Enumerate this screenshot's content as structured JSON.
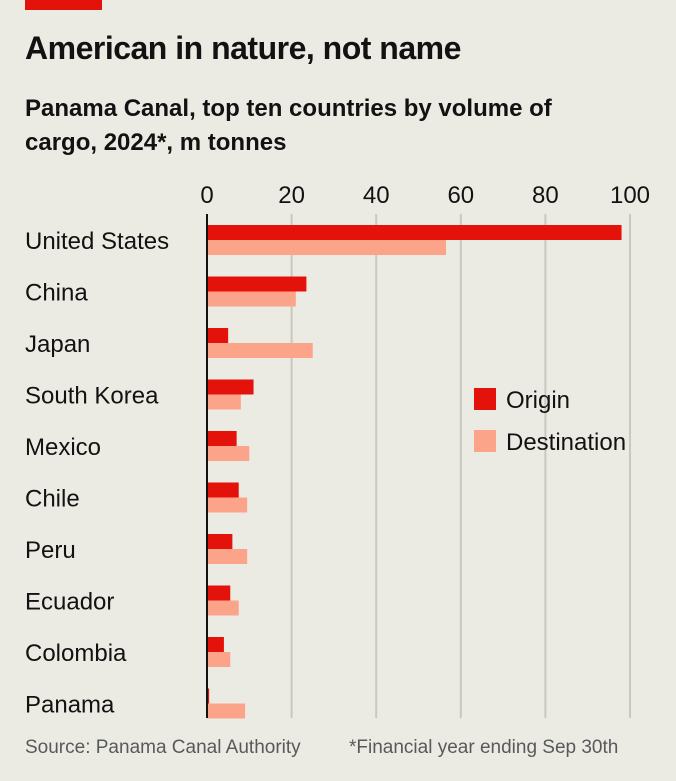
{
  "header": {
    "title": "American in nature, not name",
    "subtitle": "Panama Canal, top ten countries by volume of cargo, 2024*, m tonnes"
  },
  "footer": {
    "source": "Source: Panama Canal Authority",
    "note": "*Financial year ending Sep 30th"
  },
  "colors": {
    "origin": "#e3120b",
    "destination": "#fca48a",
    "background": "#ecebe3",
    "grid": "#c9c8c0",
    "accent": "#e3120b"
  },
  "chart_data": {
    "type": "bar",
    "orientation": "horizontal",
    "categories": [
      "United States",
      "China",
      "Japan",
      "South Korea",
      "Mexico",
      "Chile",
      "Peru",
      "Ecuador",
      "Colombia",
      "Panama"
    ],
    "series": [
      {
        "name": "Origin",
        "values": [
          98,
          23.5,
          5,
          11,
          7,
          7.5,
          6,
          5.5,
          4,
          0.5
        ]
      },
      {
        "name": "Destination",
        "values": [
          56.5,
          21,
          25,
          8,
          10,
          9.5,
          9.5,
          7.5,
          5.5,
          9
        ]
      }
    ],
    "xlim": [
      0,
      100
    ],
    "xticks": [
      0,
      20,
      40,
      60,
      80,
      100
    ],
    "xlabel": "",
    "ylabel": "",
    "grid": true,
    "legend_position": "right"
  }
}
